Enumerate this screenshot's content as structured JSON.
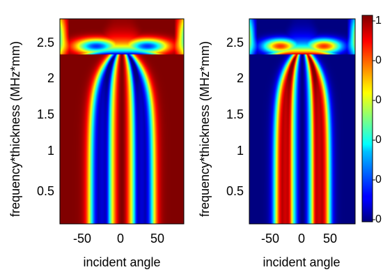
{
  "chart_data": [
    {
      "type": "heatmap",
      "colormap": "jet",
      "xlabel": "incident angle",
      "ylabel": "frequency*thickness (MHz*mm)",
      "xlim": [
        -85,
        85
      ],
      "ylim": [
        0,
        2.85
      ],
      "xticks": [
        -50,
        0,
        50
      ],
      "xtick_labels": [
        "-50",
        "0",
        "50"
      ],
      "yticks": [
        0.5,
        1,
        1.5,
        2,
        2.5
      ],
      "ytick_labels": [
        "0.5",
        "1",
        "1.5",
        "2",
        "2.5"
      ],
      "pattern": "high values (red) along a central vertical band near 0 degrees; blue bands at about ±25 degrees; red beyond about ±40 degrees; bands converge at about 2.35 MHz*mm; red region above about 2.4 MHz*mm"
    },
    {
      "type": "heatmap",
      "colormap": "jet",
      "xlabel": "incident angle",
      "ylabel": "frequency*thickness (MHz*mm)",
      "xlim": [
        -85,
        85
      ],
      "ylim": [
        0,
        2.85
      ],
      "xticks": [
        -50,
        0,
        50
      ],
      "xtick_labels": [
        "-50",
        "0",
        "50"
      ],
      "yticks": [
        0.5,
        1,
        1.5,
        2,
        2.5
      ],
      "ytick_labels": [
        "0.5",
        "1",
        "1.5",
        "2",
        "2.5"
      ],
      "pattern": "low values (blue) along a central vertical band near 0 degrees; red bands at about ±25 degrees; blue beyond about ±45 degrees; bands converge at about 2.35 MHz*mm; blue region above about 2.4 MHz*mm"
    }
  ],
  "colorbar": {
    "colormap": "jet",
    "range": [
      0,
      1
    ],
    "tick_labels": [
      "1",
      "0",
      "0",
      "0",
      "0",
      "0"
    ]
  }
}
